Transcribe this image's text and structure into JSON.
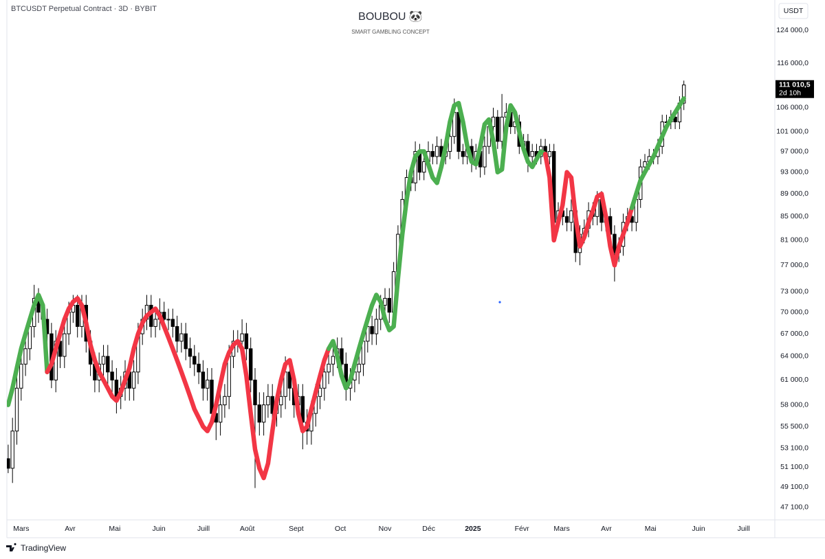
{
  "chart_data": {
    "type": "candlestick",
    "symbol": "BTCUSDT Perpetual Contract · 3D · BYBIT",
    "title": "BOUBOU 🐼",
    "subtitle": "SMART GAMBLING CONCEPT",
    "currency": "USDT",
    "brand": "TradingView",
    "last_price_label": "111 010,5",
    "countdown": "2d 10h",
    "log_scale": true,
    "grid": false,
    "up_color": "#ffffff",
    "down_color": "#000000",
    "wick_color": "#000000",
    "open": [
      52000,
      51000,
      55000,
      60000,
      63000,
      65000,
      68000,
      72000,
      70000,
      69000,
      67000,
      61000,
      66000,
      64000,
      67000,
      70000,
      71000,
      68000,
      71000,
      66000,
      63000,
      61000,
      63000,
      64000,
      62000,
      61000,
      59000,
      60000,
      62000,
      60000,
      62000,
      67000,
      69000,
      71000,
      68000,
      69000,
      70000,
      69000,
      69000,
      68000,
      66000,
      67000,
      65000,
      64000,
      63000,
      62000,
      60000,
      61000,
      57000,
      56000,
      58000,
      59000,
      64000,
      66000,
      66000,
      67000,
      65000,
      61000,
      58000,
      56000,
      58000,
      59000,
      57000,
      58000,
      59000,
      62000,
      60000,
      58000,
      59000,
      56000,
      55000,
      57000,
      59000,
      60000,
      62000,
      63000,
      64000,
      65000,
      63000,
      60000,
      61000,
      62000,
      63000,
      66000,
      68000,
      67000,
      69000,
      71000,
      72000,
      70000,
      76000,
      82000,
      88000,
      92000,
      91000,
      97000,
      93000,
      95000,
      97000,
      96000,
      98000,
      96000,
      97000,
      100000,
      105000,
      97000,
      96000,
      98000,
      95000,
      97000,
      94000,
      98000,
      102000,
      104000,
      99000,
      104000,
      105000,
      102000,
      103000,
      98000,
      99000,
      96000,
      97000,
      96000,
      98000,
      96000,
      97000,
      84000,
      86000,
      85000,
      84000,
      86000,
      79000,
      82000,
      83000,
      86000,
      85000,
      88000,
      84000,
      85000,
      82000,
      79000,
      80000,
      84000,
      85000,
      84000,
      88000,
      94000,
      95000,
      96000,
      96000,
      98000,
      103000,
      103000,
      104000,
      103000,
      107000
    ],
    "high": [
      53500,
      56500,
      61500,
      64500,
      66500,
      69500,
      74000,
      73500,
      71500,
      70500,
      68500,
      67500,
      67500,
      68500,
      71500,
      72500,
      72500,
      72500,
      72500,
      67500,
      64500,
      64500,
      65500,
      65500,
      63500,
      62500,
      61500,
      63500,
      63500,
      63500,
      68500,
      70500,
      72500,
      72500,
      70500,
      72000,
      71500,
      70500,
      70500,
      69500,
      68500,
      68500,
      66500,
      65500,
      64500,
      63500,
      62500,
      62500,
      58500,
      59500,
      60500,
      65500,
      67500,
      67500,
      69000,
      68500,
      66500,
      62500,
      59500,
      59500,
      60500,
      60500,
      59500,
      60500,
      64000,
      63500,
      61500,
      60500,
      60500,
      57500,
      58500,
      60500,
      61500,
      63500,
      64500,
      65500,
      66500,
      66500,
      64500,
      62500,
      63500,
      64500,
      67500,
      69500,
      69500,
      70500,
      72500,
      73500,
      73500,
      77500,
      83500,
      89500,
      93500,
      93500,
      99000,
      98500,
      96500,
      99000,
      98500,
      100000,
      99500,
      98500,
      102000,
      108000,
      106500,
      98500,
      100000,
      99500,
      98500,
      98500,
      100000,
      103500,
      106000,
      105500,
      109000,
      107000,
      106500,
      104500,
      104500,
      100500,
      100500,
      98500,
      98500,
      99500,
      99500,
      98500,
      98500,
      87500,
      87500,
      86500,
      88000,
      87500,
      83500,
      84500,
      87500,
      87500,
      89500,
      89500,
      86500,
      86500,
      83500,
      81500,
      85500,
      86500,
      86500,
      89500,
      95500,
      96500,
      97500,
      97500,
      99500,
      104500,
      104500,
      105500,
      105500,
      108500,
      112000
    ],
    "low": [
      50500,
      49500,
      53500,
      58500,
      61500,
      63500,
      66500,
      68500,
      67500,
      65500,
      60000,
      59500,
      62500,
      62500,
      65500,
      68500,
      66500,
      66500,
      64500,
      61500,
      59500,
      59500,
      61500,
      60500,
      59500,
      57000,
      57500,
      58500,
      58500,
      58500,
      60500,
      65500,
      67500,
      66500,
      66500,
      67500,
      67500,
      67500,
      66500,
      64500,
      64500,
      63500,
      62500,
      61500,
      60500,
      58500,
      58500,
      55500,
      54000,
      54500,
      56500,
      57500,
      62500,
      64500,
      64500,
      63500,
      59500,
      49000,
      54500,
      54500,
      56500,
      55500,
      55500,
      56500,
      57500,
      58500,
      56500,
      56500,
      53000,
      53500,
      53500,
      55500,
      57500,
      58500,
      60500,
      61500,
      62500,
      61500,
      58500,
      58500,
      59500,
      60500,
      61500,
      64500,
      65500,
      65500,
      67500,
      69500,
      68500,
      68500,
      74500,
      80500,
      86500,
      89500,
      89500,
      91500,
      91500,
      93500,
      94500,
      94500,
      94500,
      94500,
      95500,
      98500,
      95500,
      94500,
      94500,
      93000,
      93500,
      92000,
      92500,
      96500,
      100500,
      97500,
      97500,
      102500,
      100500,
      100500,
      96500,
      96500,
      93000,
      94500,
      94500,
      94500,
      94500,
      94500,
      82500,
      82500,
      83500,
      82500,
      82500,
      77500,
      77000,
      80500,
      81500,
      83500,
      83500,
      82500,
      82500,
      80500,
      74500,
      77500,
      78500,
      82500,
      82500,
      82500,
      86500,
      92500,
      93500,
      94500,
      94500,
      96500,
      101500,
      101500,
      101500,
      101500,
      105500
    ],
    "close": [
      51000,
      55000,
      60000,
      63000,
      65000,
      68000,
      72000,
      70000,
      69000,
      67000,
      61000,
      66000,
      64000,
      67000,
      70000,
      71000,
      68000,
      71000,
      66000,
      63000,
      61000,
      63000,
      64000,
      62000,
      61000,
      59000,
      60000,
      62000,
      60000,
      62000,
      67000,
      69000,
      71000,
      68000,
      69000,
      70000,
      69000,
      69000,
      68000,
      66000,
      67000,
      65000,
      64000,
      63000,
      62000,
      60000,
      61000,
      57000,
      56000,
      58000,
      59000,
      64000,
      66000,
      66000,
      67000,
      65000,
      61000,
      58000,
      56000,
      58000,
      59000,
      57000,
      58000,
      59000,
      62000,
      60000,
      58000,
      59000,
      56000,
      55000,
      57000,
      59000,
      60000,
      62000,
      63000,
      64000,
      65000,
      63000,
      60000,
      61000,
      62000,
      63000,
      66000,
      68000,
      67000,
      69000,
      71000,
      72000,
      70000,
      76000,
      82000,
      88000,
      92000,
      91000,
      97000,
      93000,
      95000,
      97000,
      96000,
      98000,
      96000,
      97000,
      100000,
      105000,
      97000,
      96000,
      98000,
      95000,
      97000,
      94000,
      98000,
      102000,
      104000,
      99000,
      104000,
      105000,
      102000,
      103000,
      98000,
      99000,
      96000,
      97000,
      96000,
      98000,
      96000,
      97000,
      84000,
      86000,
      85000,
      84000,
      86000,
      79000,
      82000,
      83000,
      86000,
      85000,
      88000,
      84000,
      85000,
      82000,
      79000,
      80000,
      84000,
      85000,
      84000,
      88000,
      94000,
      95000,
      96000,
      96000,
      98000,
      103000,
      103000,
      104000,
      103000,
      107000,
      111010.5
    ],
    "ma": {
      "state_colors": {
        "bull": "#4caf50",
        "bear": "#f23645"
      },
      "values": [
        58000,
        60000,
        62500,
        65000,
        67000,
        69000,
        71000,
        72500,
        71000,
        62000,
        63000,
        65000,
        67000,
        69000,
        70500,
        71500,
        72000,
        71000,
        68500,
        65500,
        63500,
        62000,
        61000,
        60000,
        59000,
        58500,
        59500,
        61000,
        62500,
        65000,
        67000,
        68500,
        69500,
        70000,
        70500,
        69500,
        68000,
        66500,
        65000,
        63500,
        62000,
        60500,
        59000,
        57500,
        56500,
        55500,
        55000,
        56000,
        58000,
        60500,
        63000,
        64500,
        65500,
        66000,
        65000,
        61500,
        57000,
        53000,
        51000,
        50000,
        51500,
        55000,
        58500,
        61000,
        63000,
        63500,
        61000,
        57000,
        55000,
        55500,
        57500,
        59500,
        61500,
        63500,
        65000,
        66000,
        64000,
        61500,
        60000,
        61000,
        63000,
        65000,
        67000,
        69000,
        71000,
        72500,
        71500,
        69000,
        67500,
        68000,
        75000,
        82000,
        88000,
        93000,
        96000,
        97000,
        97000,
        94500,
        92000,
        91000,
        94000,
        98000,
        103000,
        106500,
        107000,
        103000,
        98000,
        95000,
        94500,
        98000,
        102500,
        103500,
        99000,
        93000,
        93500,
        102000,
        106500,
        105000,
        101000,
        97500,
        95000,
        94000,
        95500,
        97000,
        96500,
        92000,
        81000,
        84000,
        87000,
        93000,
        92000,
        85000,
        80000,
        81500,
        84000,
        86000,
        88500,
        89000,
        85000,
        80000,
        77000,
        80000,
        82000,
        84000,
        86500,
        89000,
        91500,
        93000,
        94500,
        96000,
        98000,
        100000,
        102000,
        103500,
        105000,
        106500,
        108000
      ],
      "states": [
        "bull",
        "bull",
        "bull",
        "bull",
        "bull",
        "bull",
        "bull",
        "bull",
        "bull",
        "bull",
        "bear",
        "bear",
        "bear",
        "bear",
        "bear",
        "bear",
        "bear",
        "bear",
        "bear",
        "bear",
        "bear",
        "bear",
        "bear",
        "bear",
        "bear",
        "bear",
        "bear",
        "bear",
        "bear",
        "bear",
        "bear",
        "bear",
        "bear",
        "bear",
        "bear",
        "bear",
        "bear",
        "bear",
        "bear",
        "bear",
        "bear",
        "bear",
        "bear",
        "bear",
        "bear",
        "bear",
        "bear",
        "bear",
        "bear",
        "bear",
        "bear",
        "bear",
        "bear",
        "bear",
        "bear",
        "bear",
        "bear",
        "bear",
        "bear",
        "bear",
        "bear",
        "bear",
        "bear",
        "bear",
        "bear",
        "bear",
        "bear",
        "bear",
        "bear",
        "bear",
        "bear",
        "bear",
        "bear",
        "bear",
        "bear",
        "bull",
        "bull",
        "bull",
        "bull",
        "bull",
        "bull",
        "bull",
        "bull",
        "bull",
        "bull",
        "bull",
        "bull",
        "bull",
        "bull",
        "bull",
        "bull",
        "bull",
        "bull",
        "bull",
        "bull",
        "bull",
        "bull",
        "bull",
        "bull",
        "bull",
        "bull",
        "bull",
        "bull",
        "bull",
        "bull",
        "bull",
        "bull",
        "bull",
        "bull",
        "bull",
        "bull",
        "bull",
        "bull",
        "bull",
        "bull",
        "bull",
        "bull",
        "bull",
        "bull",
        "bull",
        "bull",
        "bull",
        "bull",
        "bull",
        "bull",
        "bear",
        "bear",
        "bear",
        "bear",
        "bear",
        "bear",
        "bear",
        "bear",
        "bear",
        "bear",
        "bear",
        "bear",
        "bear",
        "bear",
        "bear",
        "bear",
        "bear",
        "bear",
        "bear",
        "bear",
        "bull",
        "bull",
        "bull",
        "bull",
        "bull",
        "bull",
        "bull",
        "bull",
        "bull",
        "bull",
        "bull",
        "bull"
      ]
    },
    "xlim": [
      -0.3,
      177
    ],
    "xticks": [
      {
        "value": 3.0,
        "label": "Mars"
      },
      {
        "value": 14.3,
        "label": "Avr"
      },
      {
        "value": 24.6,
        "label": "Mai"
      },
      {
        "value": 34.8,
        "label": "Juin"
      },
      {
        "value": 45.1,
        "label": "Juill"
      },
      {
        "value": 55.2,
        "label": "Août"
      },
      {
        "value": 66.5,
        "label": "Sept"
      },
      {
        "value": 76.7,
        "label": "Oct"
      },
      {
        "value": 87.0,
        "label": "Nov"
      },
      {
        "value": 97.1,
        "label": "Déc"
      },
      {
        "value": 107.3,
        "label": "2025"
      },
      {
        "value": 118.6,
        "label": "Févr"
      },
      {
        "value": 127.8,
        "label": "Mars"
      },
      {
        "value": 138.1,
        "label": "Avr"
      },
      {
        "value": 148.3,
        "label": "Mai"
      },
      {
        "value": 159.4,
        "label": "Juin"
      },
      {
        "value": 169.8,
        "label": "Juill"
      }
    ],
    "ylim": [
      45930,
      131900
    ],
    "yticks": [
      {
        "value": 124000,
        "label": "124 000,0"
      },
      {
        "value": 116000,
        "label": "116 000,0"
      },
      {
        "value": 106000,
        "label": "106 000,0"
      },
      {
        "value": 101000,
        "label": "101 000,0"
      },
      {
        "value": 97000,
        "label": "97 000,0"
      },
      {
        "value": 93000,
        "label": "93 000,0"
      },
      {
        "value": 89000,
        "label": "89 000,0"
      },
      {
        "value": 85000,
        "label": "85 000,0"
      },
      {
        "value": 81000,
        "label": "81 000,0"
      },
      {
        "value": 77000,
        "label": "77 000,0"
      },
      {
        "value": 73000,
        "label": "73 000,0"
      },
      {
        "value": 70000,
        "label": "70 000,0"
      },
      {
        "value": 67000,
        "label": "67 000,0"
      },
      {
        "value": 64000,
        "label": "64 000,0"
      },
      {
        "value": 61000,
        "label": "61 000,0"
      },
      {
        "value": 58000,
        "label": "58 000,0"
      },
      {
        "value": 55500,
        "label": "55 500,0"
      },
      {
        "value": 53100,
        "label": "53 100,0"
      },
      {
        "value": 51100,
        "label": "51 100,0"
      },
      {
        "value": 49100,
        "label": "49 100,0"
      },
      {
        "value": 47100,
        "label": "47 100,0"
      }
    ]
  }
}
